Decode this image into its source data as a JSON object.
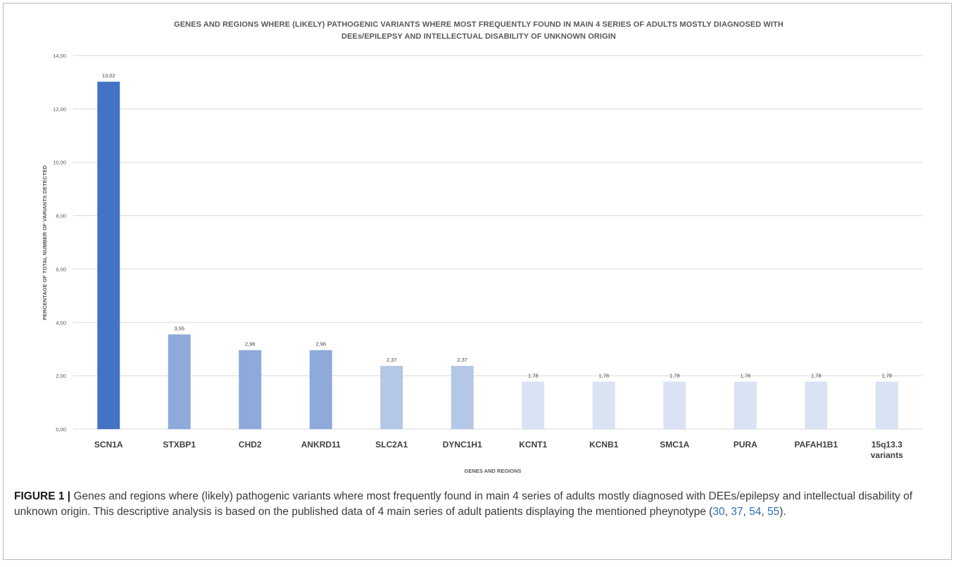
{
  "chart_data": {
    "type": "bar",
    "title_line1": "GENES AND REGIONS WHERE (LIKELY) PATHOGENIC VARIANTS WHERE MOST FREQUENTLY FOUND IN MAIN 4 SERIES OF ADULTS MOSTLY DIAGNOSED WITH",
    "title_line2": "DEEs/EPILEPSY AND INTELLECTUAL DISABILITY OF UNKNOWN ORIGIN",
    "xlabel": "GENES AND REGIONS",
    "ylabel": "PERCENTAGE OF TOTAL NUMBER OF VARIANTS DETECTED",
    "ylim": [
      0,
      14
    ],
    "yticks": [
      "0,00",
      "2,00",
      "4,00",
      "6,00",
      "8,00",
      "10,00",
      "12,00",
      "14,00"
    ],
    "grid": true,
    "categories": [
      [
        "SCN1A"
      ],
      [
        "STXBP1"
      ],
      [
        "CHD2"
      ],
      [
        "ANKRD11"
      ],
      [
        "SLC2A1"
      ],
      [
        "DYNC1H1"
      ],
      [
        "KCNT1"
      ],
      [
        "KCNB1"
      ],
      [
        "SMC1A"
      ],
      [
        "PURA"
      ],
      [
        "PAFAH1B1"
      ],
      [
        "15q13.3",
        "variants"
      ]
    ],
    "values": [
      13.02,
      3.55,
      2.96,
      2.96,
      2.37,
      2.37,
      1.78,
      1.78,
      1.78,
      1.78,
      1.78,
      1.78
    ],
    "value_labels": [
      "13,02",
      "3,55",
      "2,96",
      "2,96",
      "2,37",
      "2,37",
      "1,78",
      "1,78",
      "1,78",
      "1,78",
      "1,78",
      "1,78"
    ],
    "colors": [
      "#4472c4",
      "#8eaadb",
      "#8eaadb",
      "#8eaadb",
      "#b4c7e7",
      "#b4c7e7",
      "#dae3f3",
      "#dae3f3",
      "#dae3f3",
      "#dae3f3",
      "#dae3f3",
      "#dae3f3"
    ]
  },
  "caption": {
    "label": "FIGURE 1 |",
    "text": " Genes and regions where (likely) pathogenic variants where most frequently found in main 4 series of adults mostly diagnosed with DEEs/epilepsy and intellectual disability of unknown origin. This descriptive analysis is based on the published data of 4 main series of adult patients displaying the mentioned pheynotype (",
    "refs": [
      "30",
      "37",
      "54",
      "55"
    ],
    "end": ")."
  }
}
